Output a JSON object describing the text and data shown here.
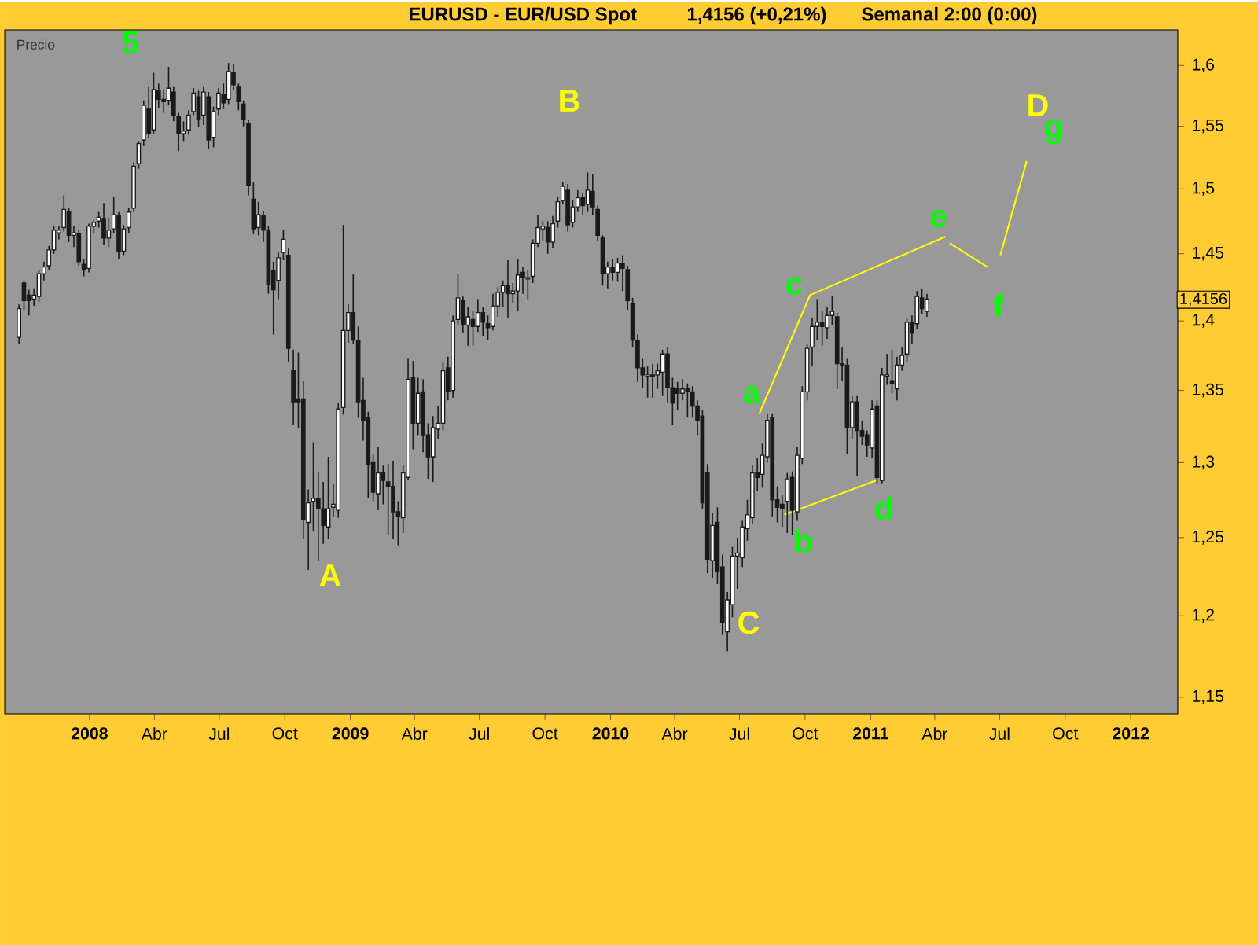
{
  "chart_data": {
    "type": "candlestick",
    "title": "EURUSD - EUR/USD Spot",
    "subtitle": "1,4156 (+0,21%)",
    "ylabel": "Precio",
    "log": true,
    "color": "#1a1a1a",
    "xlim": [
      "2007-09-04",
      "2012-03-07"
    ],
    "ylim": [
      1.14,
      1.63
    ],
    "xticks": [
      {
        "value": "2008-01-01",
        "label": "2008"
      },
      {
        "value": "2008-04-01",
        "label": "Abr"
      },
      {
        "value": "2008-07-01",
        "label": "Jul"
      },
      {
        "value": "2008-10-01",
        "label": "Oct"
      },
      {
        "value": "2009-01-01",
        "label": "2009"
      },
      {
        "value": "2009-04-01",
        "label": "Abr"
      },
      {
        "value": "2009-07-01",
        "label": "Jul"
      },
      {
        "value": "2009-10-01",
        "label": "Oct"
      },
      {
        "value": "2010-01-01",
        "label": "2010"
      },
      {
        "value": "2010-04-01",
        "label": "Abr"
      },
      {
        "value": "2010-07-01",
        "label": "Jul"
      },
      {
        "value": "2010-10-01",
        "label": "Oct"
      },
      {
        "value": "2011-01-01",
        "label": "2011"
      },
      {
        "value": "2011-04-01",
        "label": "Abr"
      },
      {
        "value": "2011-07-01",
        "label": "Jul"
      },
      {
        "value": "2011-10-01",
        "label": "Oct"
      },
      {
        "value": "2012-01-01",
        "label": "2012"
      }
    ],
    "yticks": [
      {
        "value": 1.15,
        "label": "1,15"
      },
      {
        "value": 1.2,
        "label": "1,2"
      },
      {
        "value": 1.25,
        "label": "1,25"
      },
      {
        "value": 1.3,
        "label": "1,3"
      },
      {
        "value": 1.35,
        "label": "1,35"
      },
      {
        "value": 1.4,
        "label": "1,4"
      },
      {
        "value": 1.45,
        "label": "1,45"
      },
      {
        "value": 1.5,
        "label": "1,5"
      },
      {
        "value": 1.55,
        "label": "1,55"
      },
      {
        "value": 1.6,
        "label": "1,6"
      }
    ],
    "x": [
      "2007-09-24",
      "2007-10-01",
      "2007-10-08",
      "2007-10-15",
      "2007-10-22",
      "2007-10-29",
      "2007-11-05",
      "2007-11-12",
      "2007-11-19",
      "2007-11-26",
      "2007-12-03",
      "2007-12-10",
      "2007-12-17",
      "2007-12-24",
      "2007-12-31",
      "2008-01-07",
      "2008-01-14",
      "2008-01-21",
      "2008-01-28",
      "2008-02-04",
      "2008-02-11",
      "2008-02-18",
      "2008-02-25",
      "2008-03-03",
      "2008-03-10",
      "2008-03-17",
      "2008-03-24",
      "2008-03-31",
      "2008-04-07",
      "2008-04-14",
      "2008-04-21",
      "2008-04-28",
      "2008-05-05",
      "2008-05-12",
      "2008-05-19",
      "2008-05-26",
      "2008-06-02",
      "2008-06-09",
      "2008-06-16",
      "2008-06-23",
      "2008-06-30",
      "2008-07-07",
      "2008-07-14",
      "2008-07-21",
      "2008-07-28",
      "2008-08-04",
      "2008-08-11",
      "2008-08-18",
      "2008-08-25",
      "2008-09-01",
      "2008-09-08",
      "2008-09-15",
      "2008-09-22",
      "2008-09-29",
      "2008-10-06",
      "2008-10-13",
      "2008-10-20",
      "2008-10-27",
      "2008-11-03",
      "2008-11-10",
      "2008-11-17",
      "2008-11-24",
      "2008-12-01",
      "2008-12-08",
      "2008-12-15",
      "2008-12-22",
      "2008-12-29",
      "2009-01-05",
      "2009-01-12",
      "2009-01-19",
      "2009-01-26",
      "2009-02-02",
      "2009-02-09",
      "2009-02-16",
      "2009-02-23",
      "2009-03-02",
      "2009-03-09",
      "2009-03-16",
      "2009-03-23",
      "2009-03-30",
      "2009-04-06",
      "2009-04-13",
      "2009-04-20",
      "2009-04-27",
      "2009-05-04",
      "2009-05-11",
      "2009-05-18",
      "2009-05-25",
      "2009-06-01",
      "2009-06-08",
      "2009-06-15",
      "2009-06-22",
      "2009-06-29",
      "2009-07-06",
      "2009-07-13",
      "2009-07-20",
      "2009-07-27",
      "2009-08-03",
      "2009-08-10",
      "2009-08-17",
      "2009-08-24",
      "2009-08-31",
      "2009-09-07",
      "2009-09-14",
      "2009-09-21",
      "2009-09-28",
      "2009-10-05",
      "2009-10-12",
      "2009-10-19",
      "2009-10-26",
      "2009-11-02",
      "2009-11-09",
      "2009-11-16",
      "2009-11-23",
      "2009-11-30",
      "2009-12-07",
      "2009-12-14",
      "2009-12-21",
      "2009-12-28",
      "2010-01-04",
      "2010-01-11",
      "2010-01-18",
      "2010-01-25",
      "2010-02-01",
      "2010-02-08",
      "2010-02-15",
      "2010-02-22",
      "2010-03-01",
      "2010-03-08",
      "2010-03-15",
      "2010-03-22",
      "2010-03-29",
      "2010-04-05",
      "2010-04-12",
      "2010-04-19",
      "2010-04-26",
      "2010-05-03",
      "2010-05-10",
      "2010-05-17",
      "2010-05-24",
      "2010-05-31",
      "2010-06-07",
      "2010-06-14",
      "2010-06-21",
      "2010-06-28",
      "2010-07-05",
      "2010-07-12",
      "2010-07-19",
      "2010-07-26",
      "2010-08-02",
      "2010-08-09",
      "2010-08-16",
      "2010-08-23",
      "2010-08-30",
      "2010-09-06",
      "2010-09-13",
      "2010-09-20",
      "2010-09-27",
      "2010-10-04",
      "2010-10-11",
      "2010-10-18",
      "2010-10-25",
      "2010-11-01",
      "2010-11-08",
      "2010-11-15",
      "2010-11-22",
      "2010-11-29",
      "2010-12-06",
      "2010-12-13",
      "2010-12-20",
      "2010-12-27",
      "2011-01-03",
      "2011-01-10",
      "2011-01-17",
      "2011-01-24",
      "2011-01-31",
      "2011-02-07",
      "2011-02-14",
      "2011-02-21",
      "2011-02-28",
      "2011-03-07",
      "2011-03-14",
      "2011-03-21"
    ],
    "ohlc": [
      [
        1.388,
        1.412,
        1.383,
        1.409
      ],
      [
        1.428,
        1.43,
        1.408,
        1.415
      ],
      [
        1.419,
        1.423,
        1.404,
        1.415
      ],
      [
        1.416,
        1.424,
        1.411,
        1.419
      ],
      [
        1.418,
        1.438,
        1.414,
        1.435
      ],
      [
        1.435,
        1.444,
        1.43,
        1.44
      ],
      [
        1.441,
        1.456,
        1.438,
        1.453
      ],
      [
        1.453,
        1.471,
        1.45,
        1.468
      ],
      [
        1.466,
        1.471,
        1.461,
        1.468
      ],
      [
        1.47,
        1.495,
        1.467,
        1.484
      ],
      [
        1.482,
        1.485,
        1.459,
        1.464
      ],
      [
        1.464,
        1.471,
        1.455,
        1.466
      ],
      [
        1.465,
        1.468,
        1.441,
        1.444
      ],
      [
        1.442,
        1.446,
        1.433,
        1.438
      ],
      [
        1.439,
        1.473,
        1.436,
        1.471
      ],
      [
        1.471,
        1.476,
        1.466,
        1.474
      ],
      [
        1.475,
        1.482,
        1.47,
        1.478
      ],
      [
        1.477,
        1.489,
        1.457,
        1.462
      ],
      [
        1.462,
        1.478,
        1.455,
        1.468
      ],
      [
        1.469,
        1.494,
        1.466,
        1.48
      ],
      [
        1.479,
        1.482,
        1.446,
        1.452
      ],
      [
        1.452,
        1.472,
        1.449,
        1.469
      ],
      [
        1.47,
        1.485,
        1.466,
        1.482
      ],
      [
        1.485,
        1.521,
        1.482,
        1.518
      ],
      [
        1.52,
        1.538,
        1.516,
        1.536
      ],
      [
        1.539,
        1.571,
        1.534,
        1.567
      ],
      [
        1.564,
        1.582,
        1.54,
        1.544
      ],
      [
        1.547,
        1.594,
        1.544,
        1.58
      ],
      [
        1.579,
        1.585,
        1.565,
        1.572
      ],
      [
        1.572,
        1.58,
        1.561,
        1.57
      ],
      [
        1.571,
        1.599,
        1.567,
        1.581
      ],
      [
        1.578,
        1.582,
        1.554,
        1.559
      ],
      [
        1.558,
        1.561,
        1.53,
        1.544
      ],
      [
        1.544,
        1.554,
        1.538,
        1.546
      ],
      [
        1.547,
        1.563,
        1.543,
        1.559
      ],
      [
        1.562,
        1.581,
        1.559,
        1.577
      ],
      [
        1.574,
        1.579,
        1.549,
        1.556
      ],
      [
        1.559,
        1.582,
        1.551,
        1.578
      ],
      [
        1.574,
        1.578,
        1.532,
        1.539
      ],
      [
        1.541,
        1.566,
        1.533,
        1.562
      ],
      [
        1.564,
        1.581,
        1.559,
        1.577
      ],
      [
        1.576,
        1.585,
        1.564,
        1.569
      ],
      [
        1.572,
        1.602,
        1.568,
        1.595
      ],
      [
        1.594,
        1.601,
        1.58,
        1.584
      ],
      [
        1.582,
        1.585,
        1.563,
        1.57
      ],
      [
        1.568,
        1.571,
        1.55,
        1.556
      ],
      [
        1.552,
        1.555,
        1.495,
        1.503
      ],
      [
        1.492,
        1.505,
        1.465,
        1.469
      ],
      [
        1.47,
        1.49,
        1.464,
        1.48
      ],
      [
        1.479,
        1.483,
        1.459,
        1.468
      ],
      [
        1.468,
        1.471,
        1.42,
        1.427
      ],
      [
        1.437,
        1.444,
        1.39,
        1.423
      ],
      [
        1.43,
        1.451,
        1.416,
        1.447
      ],
      [
        1.451,
        1.468,
        1.445,
        1.461
      ],
      [
        1.449,
        1.454,
        1.37,
        1.38
      ],
      [
        1.364,
        1.379,
        1.326,
        1.342
      ],
      [
        1.344,
        1.377,
        1.324,
        1.342
      ],
      [
        1.344,
        1.357,
        1.249,
        1.262
      ],
      [
        1.26,
        1.282,
        1.229,
        1.273
      ],
      [
        1.274,
        1.314,
        1.254,
        1.276
      ],
      [
        1.276,
        1.294,
        1.235,
        1.269
      ],
      [
        1.269,
        1.287,
        1.246,
        1.258
      ],
      [
        1.257,
        1.304,
        1.249,
        1.269
      ],
      [
        1.27,
        1.286,
        1.264,
        1.272
      ],
      [
        1.268,
        1.341,
        1.263,
        1.337
      ],
      [
        1.338,
        1.472,
        1.333,
        1.393
      ],
      [
        1.393,
        1.412,
        1.384,
        1.406
      ],
      [
        1.406,
        1.435,
        1.383,
        1.386
      ],
      [
        1.386,
        1.396,
        1.331,
        1.342
      ],
      [
        1.343,
        1.359,
        1.315,
        1.329
      ],
      [
        1.331,
        1.335,
        1.276,
        1.299
      ],
      [
        1.3,
        1.306,
        1.274,
        1.28
      ],
      [
        1.279,
        1.311,
        1.268,
        1.293
      ],
      [
        1.293,
        1.298,
        1.272,
        1.288
      ],
      [
        1.287,
        1.299,
        1.252,
        1.284
      ],
      [
        1.284,
        1.301,
        1.249,
        1.267
      ],
      [
        1.267,
        1.274,
        1.245,
        1.264
      ],
      [
        1.263,
        1.298,
        1.253,
        1.293
      ],
      [
        1.29,
        1.373,
        1.288,
        1.358
      ],
      [
        1.359,
        1.371,
        1.309,
        1.327
      ],
      [
        1.327,
        1.359,
        1.319,
        1.348
      ],
      [
        1.349,
        1.358,
        1.307,
        1.319
      ],
      [
        1.319,
        1.327,
        1.289,
        1.304
      ],
      [
        1.304,
        1.332,
        1.287,
        1.324
      ],
      [
        1.323,
        1.339,
        1.316,
        1.327
      ],
      [
        1.327,
        1.37,
        1.322,
        1.364
      ],
      [
        1.366,
        1.374,
        1.343,
        1.349
      ],
      [
        1.35,
        1.404,
        1.345,
        1.4
      ],
      [
        1.401,
        1.435,
        1.397,
        1.417
      ],
      [
        1.415,
        1.418,
        1.391,
        1.397
      ],
      [
        1.397,
        1.41,
        1.382,
        1.403
      ],
      [
        1.401,
        1.407,
        1.382,
        1.396
      ],
      [
        1.396,
        1.416,
        1.392,
        1.406
      ],
      [
        1.406,
        1.41,
        1.389,
        1.399
      ],
      [
        1.398,
        1.404,
        1.386,
        1.395
      ],
      [
        1.396,
        1.42,
        1.393,
        1.411
      ],
      [
        1.411,
        1.425,
        1.403,
        1.421
      ],
      [
        1.421,
        1.43,
        1.41,
        1.426
      ],
      [
        1.426,
        1.445,
        1.402,
        1.42
      ],
      [
        1.42,
        1.428,
        1.413,
        1.422
      ],
      [
        1.422,
        1.446,
        1.407,
        1.434
      ],
      [
        1.436,
        1.44,
        1.42,
        1.432
      ],
      [
        1.431,
        1.438,
        1.416,
        1.432
      ],
      [
        1.433,
        1.461,
        1.428,
        1.458
      ],
      [
        1.458,
        1.48,
        1.455,
        1.47
      ],
      [
        1.469,
        1.475,
        1.46,
        1.471
      ],
      [
        1.47,
        1.475,
        1.45,
        1.459
      ],
      [
        1.459,
        1.479,
        1.454,
        1.473
      ],
      [
        1.475,
        1.494,
        1.47,
        1.49
      ],
      [
        1.491,
        1.505,
        1.488,
        1.502
      ],
      [
        1.499,
        1.504,
        1.467,
        1.472
      ],
      [
        1.474,
        1.491,
        1.47,
        1.486
      ],
      [
        1.486,
        1.499,
        1.482,
        1.493
      ],
      [
        1.493,
        1.497,
        1.48,
        1.487
      ],
      [
        1.488,
        1.513,
        1.482,
        1.499
      ],
      [
        1.498,
        1.512,
        1.48,
        1.486
      ],
      [
        1.484,
        1.487,
        1.46,
        1.464
      ],
      [
        1.462,
        1.464,
        1.426,
        1.435
      ],
      [
        1.435,
        1.444,
        1.424,
        1.44
      ],
      [
        1.44,
        1.446,
        1.43,
        1.436
      ],
      [
        1.436,
        1.447,
        1.429,
        1.443
      ],
      [
        1.443,
        1.449,
        1.422,
        1.439
      ],
      [
        1.438,
        1.441,
        1.408,
        1.415
      ],
      [
        1.413,
        1.417,
        1.381,
        1.386
      ],
      [
        1.386,
        1.39,
        1.356,
        1.366
      ],
      [
        1.366,
        1.373,
        1.352,
        1.361
      ],
      [
        1.36,
        1.367,
        1.345,
        1.361
      ],
      [
        1.361,
        1.369,
        1.345,
        1.36
      ],
      [
        1.361,
        1.369,
        1.351,
        1.364
      ],
      [
        1.363,
        1.379,
        1.346,
        1.376
      ],
      [
        1.376,
        1.381,
        1.341,
        1.352
      ],
      [
        1.352,
        1.359,
        1.326,
        1.341
      ],
      [
        1.351,
        1.356,
        1.336,
        1.348
      ],
      [
        1.348,
        1.358,
        1.343,
        1.351
      ],
      [
        1.351,
        1.355,
        1.331,
        1.349
      ],
      [
        1.349,
        1.353,
        1.331,
        1.339
      ],
      [
        1.339,
        1.343,
        1.319,
        1.329
      ],
      [
        1.332,
        1.336,
        1.269,
        1.273
      ],
      [
        1.293,
        1.299,
        1.227,
        1.236
      ],
      [
        1.235,
        1.266,
        1.224,
        1.258
      ],
      [
        1.26,
        1.27,
        1.22,
        1.228
      ],
      [
        1.231,
        1.239,
        1.188,
        1.196
      ],
      [
        1.19,
        1.215,
        1.178,
        1.21
      ],
      [
        1.207,
        1.244,
        1.199,
        1.238
      ],
      [
        1.238,
        1.25,
        1.217,
        1.24
      ],
      [
        1.237,
        1.261,
        1.231,
        1.257
      ],
      [
        1.256,
        1.275,
        1.248,
        1.265
      ],
      [
        1.263,
        1.298,
        1.259,
        1.293
      ],
      [
        1.293,
        1.303,
        1.281,
        1.29
      ],
      [
        1.292,
        1.313,
        1.283,
        1.305
      ],
      [
        1.304,
        1.334,
        1.3,
        1.329
      ],
      [
        1.331,
        1.334,
        1.264,
        1.275
      ],
      [
        1.275,
        1.284,
        1.26,
        1.27
      ],
      [
        1.272,
        1.278,
        1.257,
        1.269
      ],
      [
        1.274,
        1.293,
        1.253,
        1.289
      ],
      [
        1.29,
        1.294,
        1.252,
        1.268
      ],
      [
        1.267,
        1.311,
        1.261,
        1.305
      ],
      [
        1.303,
        1.353,
        1.299,
        1.349
      ],
      [
        1.349,
        1.383,
        1.343,
        1.38
      ],
      [
        1.381,
        1.402,
        1.367,
        1.396
      ],
      [
        1.396,
        1.416,
        1.386,
        1.399
      ],
      [
        1.399,
        1.407,
        1.382,
        1.396
      ],
      [
        1.395,
        1.41,
        1.387,
        1.404
      ],
      [
        1.404,
        1.418,
        1.397,
        1.407
      ],
      [
        1.403,
        1.406,
        1.351,
        1.369
      ],
      [
        1.369,
        1.381,
        1.357,
        1.368
      ],
      [
        1.368,
        1.373,
        1.306,
        1.324
      ],
      [
        1.324,
        1.346,
        1.316,
        1.342
      ],
      [
        1.342,
        1.346,
        1.291,
        1.322
      ],
      [
        1.322,
        1.329,
        1.312,
        1.318
      ],
      [
        1.319,
        1.322,
        1.304,
        1.312
      ],
      [
        1.31,
        1.343,
        1.303,
        1.337
      ],
      [
        1.339,
        1.343,
        1.286,
        1.29
      ],
      [
        1.288,
        1.366,
        1.286,
        1.361
      ],
      [
        1.36,
        1.376,
        1.354,
        1.361
      ],
      [
        1.357,
        1.379,
        1.348,
        1.355
      ],
      [
        1.351,
        1.374,
        1.343,
        1.368
      ],
      [
        1.368,
        1.381,
        1.364,
        1.375
      ],
      [
        1.376,
        1.402,
        1.37,
        1.399
      ],
      [
        1.399,
        1.404,
        1.383,
        1.391
      ],
      [
        1.398,
        1.422,
        1.394,
        1.418
      ],
      [
        1.417,
        1.424,
        1.405,
        1.409
      ],
      [
        1.407,
        1.42,
        1.403,
        1.416
      ]
    ],
    "series": [
      {
        "type": "line",
        "color": "#ffff00",
        "x": [
          "2010-07-29",
          "2010-10-08",
          "2011-04-16",
          "2010-11-01",
          "2010-09-02",
          "2011-01-09",
          "2011-02-01",
          "2011-04-22",
          "2011-06-14",
          "2011-06-20",
          "2011-07-02",
          "2011-08-08"
        ],
        "values": [
          1.334,
          1.419,
          1.463,
          null,
          1.265,
          1.288,
          null,
          1.458,
          1.44,
          null,
          1.449,
          1.522
        ]
      }
    ],
    "annotations": [
      "Semanal 2:00 (0:00)",
      {
        "text": "1,4156",
        "y": 1.4156
      },
      "5",
      "A",
      "B",
      "C",
      "D",
      "a",
      "b",
      "c",
      "d",
      "e",
      "f",
      "g"
    ]
  }
}
